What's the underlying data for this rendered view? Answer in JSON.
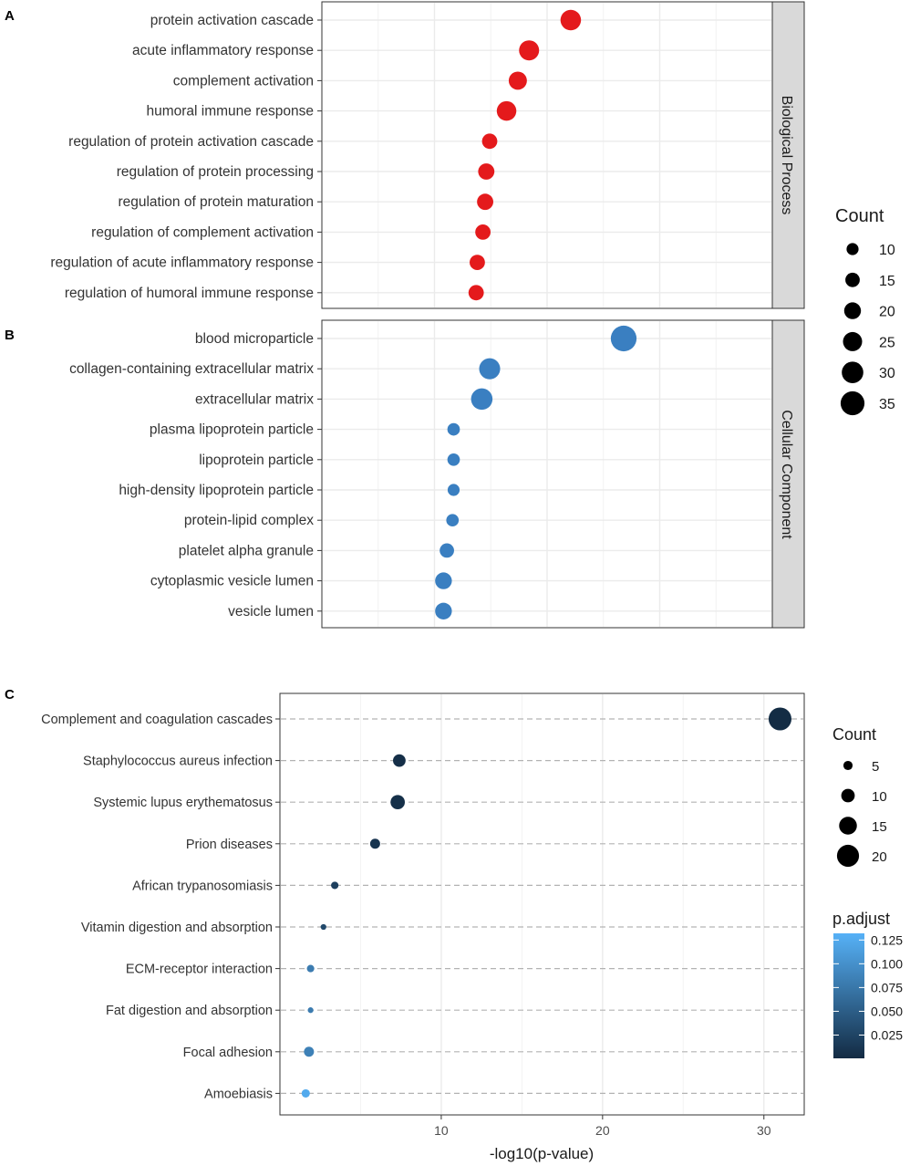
{
  "chart_data": [
    {
      "panel_label": "A",
      "type": "scatter",
      "facet_label": "Biological Process",
      "color": "#e41a1c",
      "categories": [
        "protein activation cascade",
        "acute inflammatory response",
        "complement activation",
        "humoral immune response",
        "regulation of protein activation cascade",
        "regulation of protein processing",
        "regulation of protein maturation",
        "regulation of complement activation",
        "regulation of acute inflammatory response",
        "regulation of humoral immune response"
      ],
      "x": [
        22.1,
        18.4,
        17.4,
        16.4,
        14.9,
        14.6,
        14.5,
        14.3,
        13.8,
        13.7
      ],
      "count": [
        26,
        25,
        21,
        24,
        15,
        17,
        17,
        15,
        15,
        15
      ],
      "xlim": [
        0,
        40
      ],
      "legend": {
        "title": "Count",
        "values": [
          10,
          15,
          20,
          25,
          30,
          35
        ]
      }
    },
    {
      "panel_label": "B",
      "type": "scatter",
      "facet_label": "Cellular Component",
      "color": "#3a7fc1",
      "categories": [
        "blood microparticle",
        "collagen-containing extracellular matrix",
        "extracellular matrix",
        "plasma lipoprotein particle",
        "lipoprotein particle",
        "high-density lipoprotein particle",
        "protein-lipid complex",
        "platelet alpha granule",
        "cytoplasmic vesicle lumen",
        "vesicle lumen"
      ],
      "x": [
        26.8,
        14.9,
        14.2,
        11.7,
        11.7,
        11.7,
        11.6,
        11.1,
        10.8,
        10.8
      ],
      "count": [
        37,
        27,
        28,
        9,
        9,
        8,
        9,
        13,
        18,
        18
      ],
      "xlim": [
        0,
        40
      ]
    },
    {
      "panel_label": "C",
      "type": "scatter",
      "categories": [
        "Complement and coagulation cascades",
        "Staphylococcus aureus infection",
        "Systemic lupus erythematosus",
        "Prion diseases",
        "African trypanosomiasis",
        "Vitamin digestion and absorption",
        "ECM-receptor interaction",
        "Fat digestion and absorption",
        "Focal adhesion",
        "Amoebiasis"
      ],
      "x": [
        31.0,
        7.4,
        7.3,
        5.9,
        3.4,
        2.7,
        1.9,
        1.9,
        1.8,
        1.6
      ],
      "count": [
        22,
        10,
        12,
        7,
        4,
        2,
        4,
        2,
        7,
        5
      ],
      "p_adjust": [
        0.001,
        0.004,
        0.005,
        0.01,
        0.02,
        0.03,
        0.08,
        0.08,
        0.085,
        0.125
      ],
      "xlabel": "-log10(p-value)",
      "xticks": [
        10,
        20,
        30
      ],
      "xlim": [
        0,
        32.5
      ],
      "legend_count": {
        "title": "Count",
        "values": [
          5,
          10,
          15,
          20
        ]
      },
      "legend_color": {
        "title": "p.adjust",
        "ticks": [
          "0.125",
          "0.100",
          "0.075",
          "0.050",
          "0.025"
        ],
        "tick_values": [
          0.125,
          0.1,
          0.075,
          0.05,
          0.025
        ],
        "range": [
          0.0005,
          0.132
        ],
        "low_color": "#132b43",
        "high_color": "#56b1f7"
      }
    }
  ]
}
